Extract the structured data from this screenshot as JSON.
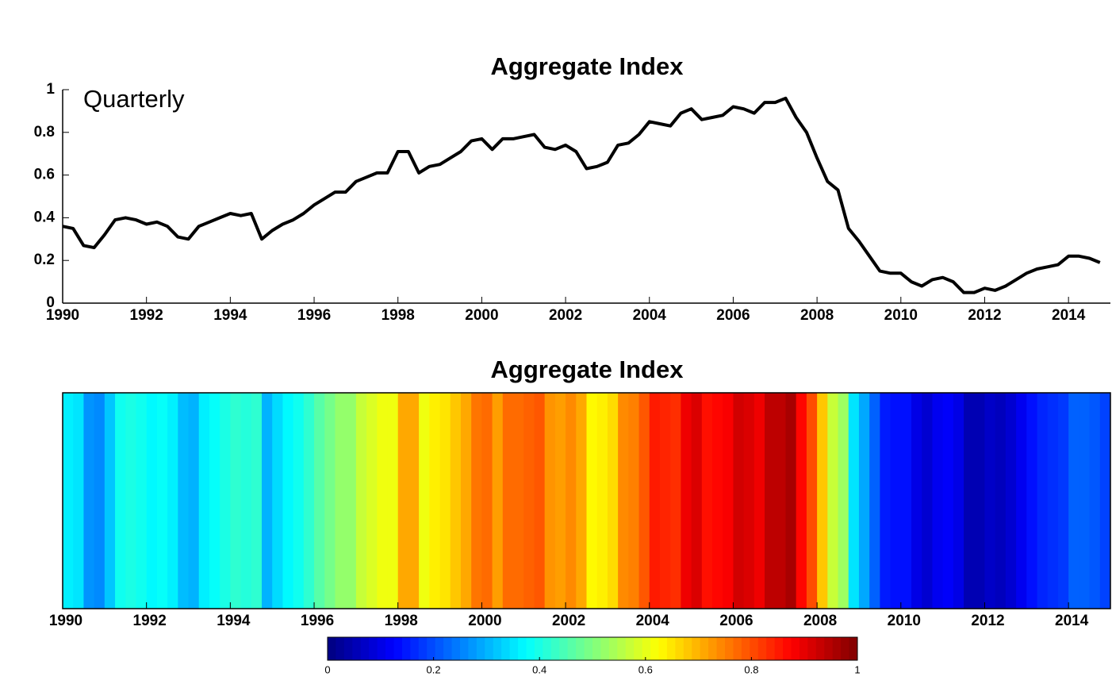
{
  "chart_data": [
    {
      "type": "line",
      "title": "Aggregate Index",
      "annotation": "Quarterly",
      "color": "#000000",
      "x": [
        1990,
        1990.25,
        1990.5,
        1990.75,
        1991,
        1991.25,
        1991.5,
        1991.75,
        1992,
        1992.25,
        1992.5,
        1992.75,
        1993,
        1993.25,
        1993.5,
        1993.75,
        1994,
        1994.25,
        1994.5,
        1994.75,
        1995,
        1995.25,
        1995.5,
        1995.75,
        1996,
        1996.25,
        1996.5,
        1996.75,
        1997,
        1997.25,
        1997.5,
        1997.75,
        1998,
        1998.25,
        1998.5,
        1998.75,
        1999,
        1999.25,
        1999.5,
        1999.75,
        2000,
        2000.25,
        2000.5,
        2000.75,
        2001,
        2001.25,
        2001.5,
        2001.75,
        2002,
        2002.25,
        2002.5,
        2002.75,
        2003,
        2003.25,
        2003.5,
        2003.75,
        2004,
        2004.25,
        2004.5,
        2004.75,
        2005,
        2005.25,
        2005.5,
        2005.75,
        2006,
        2006.25,
        2006.5,
        2006.75,
        2007,
        2007.25,
        2007.5,
        2007.75,
        2008,
        2008.25,
        2008.5,
        2008.75,
        2009,
        2009.25,
        2009.5,
        2009.75,
        2010,
        2010.25,
        2010.5,
        2010.75,
        2011,
        2011.25,
        2011.5,
        2011.75,
        2012,
        2012.25,
        2012.5,
        2012.75,
        2013,
        2013.25,
        2013.5,
        2013.75,
        2014,
        2014.25,
        2014.5,
        2014.75
      ],
      "values": [
        0.36,
        0.35,
        0.27,
        0.26,
        0.32,
        0.39,
        0.4,
        0.39,
        0.37,
        0.38,
        0.36,
        0.31,
        0.3,
        0.36,
        0.38,
        0.4,
        0.42,
        0.41,
        0.42,
        0.3,
        0.34,
        0.37,
        0.39,
        0.42,
        0.46,
        0.49,
        0.52,
        0.52,
        0.57,
        0.59,
        0.61,
        0.61,
        0.71,
        0.71,
        0.61,
        0.64,
        0.65,
        0.68,
        0.71,
        0.76,
        0.77,
        0.72,
        0.77,
        0.77,
        0.78,
        0.79,
        0.73,
        0.72,
        0.74,
        0.71,
        0.63,
        0.64,
        0.66,
        0.74,
        0.75,
        0.79,
        0.85,
        0.84,
        0.83,
        0.89,
        0.91,
        0.86,
        0.87,
        0.88,
        0.92,
        0.91,
        0.89,
        0.94,
        0.94,
        0.96,
        0.87,
        0.8,
        0.68,
        0.57,
        0.53,
        0.35,
        0.29,
        0.22,
        0.15,
        0.14,
        0.14,
        0.1,
        0.08,
        0.11,
        0.12,
        0.1,
        0.05,
        0.05,
        0.07,
        0.06,
        0.08,
        0.11,
        0.14,
        0.16,
        0.17,
        0.18,
        0.22,
        0.22,
        0.21,
        0.19
      ],
      "xlim": [
        1990,
        2015
      ],
      "xticks": [
        1990,
        1992,
        1994,
        1996,
        1998,
        2000,
        2002,
        2004,
        2006,
        2008,
        2010,
        2012,
        2014
      ],
      "ylim": [
        0,
        1
      ],
      "yticks": [
        0,
        0.2,
        0.4,
        0.6,
        0.8,
        1
      ]
    },
    {
      "type": "heatmap",
      "title": "Aggregate Index",
      "colormap": "jet",
      "x": [
        1990,
        1990.25,
        1990.5,
        1990.75,
        1991,
        1991.25,
        1991.5,
        1991.75,
        1992,
        1992.25,
        1992.5,
        1992.75,
        1993,
        1993.25,
        1993.5,
        1993.75,
        1994,
        1994.25,
        1994.5,
        1994.75,
        1995,
        1995.25,
        1995.5,
        1995.75,
        1996,
        1996.25,
        1996.5,
        1996.75,
        1997,
        1997.25,
        1997.5,
        1997.75,
        1998,
        1998.25,
        1998.5,
        1998.75,
        1999,
        1999.25,
        1999.5,
        1999.75,
        2000,
        2000.25,
        2000.5,
        2000.75,
        2001,
        2001.25,
        2001.5,
        2001.75,
        2002,
        2002.25,
        2002.5,
        2002.75,
        2003,
        2003.25,
        2003.5,
        2003.75,
        2004,
        2004.25,
        2004.5,
        2004.75,
        2005,
        2005.25,
        2005.5,
        2005.75,
        2006,
        2006.25,
        2006.5,
        2006.75,
        2007,
        2007.25,
        2007.5,
        2007.75,
        2008,
        2008.25,
        2008.5,
        2008.75,
        2009,
        2009.25,
        2009.5,
        2009.75,
        2010,
        2010.25,
        2010.5,
        2010.75,
        2011,
        2011.25,
        2011.5,
        2011.75,
        2012,
        2012.25,
        2012.5,
        2012.75,
        2013,
        2013.25,
        2013.5,
        2013.75,
        2014,
        2014.25,
        2014.5,
        2014.75
      ],
      "values": [
        0.36,
        0.35,
        0.27,
        0.26,
        0.32,
        0.39,
        0.4,
        0.39,
        0.37,
        0.38,
        0.36,
        0.31,
        0.3,
        0.36,
        0.38,
        0.4,
        0.42,
        0.41,
        0.42,
        0.3,
        0.34,
        0.37,
        0.39,
        0.42,
        0.46,
        0.49,
        0.52,
        0.52,
        0.57,
        0.59,
        0.61,
        0.61,
        0.71,
        0.71,
        0.61,
        0.64,
        0.65,
        0.68,
        0.71,
        0.76,
        0.77,
        0.72,
        0.77,
        0.77,
        0.78,
        0.79,
        0.73,
        0.72,
        0.74,
        0.71,
        0.63,
        0.64,
        0.66,
        0.74,
        0.75,
        0.79,
        0.85,
        0.84,
        0.83,
        0.89,
        0.91,
        0.86,
        0.87,
        0.88,
        0.92,
        0.91,
        0.89,
        0.94,
        0.94,
        0.96,
        0.87,
        0.8,
        0.68,
        0.57,
        0.53,
        0.35,
        0.29,
        0.22,
        0.15,
        0.14,
        0.14,
        0.1,
        0.08,
        0.11,
        0.12,
        0.1,
        0.05,
        0.05,
        0.07,
        0.06,
        0.08,
        0.11,
        0.14,
        0.16,
        0.17,
        0.18,
        0.22,
        0.22,
        0.21,
        0.19
      ],
      "xlim": [
        1990,
        2015
      ],
      "xticks": [
        1990,
        1992,
        1994,
        1996,
        1998,
        2000,
        2002,
        2004,
        2006,
        2008,
        2010,
        2012,
        2014
      ],
      "colorbar_lim": [
        0,
        1
      ],
      "colorbar_ticks": [
        0,
        0.2,
        0.4,
        0.6,
        0.8,
        1
      ]
    }
  ]
}
